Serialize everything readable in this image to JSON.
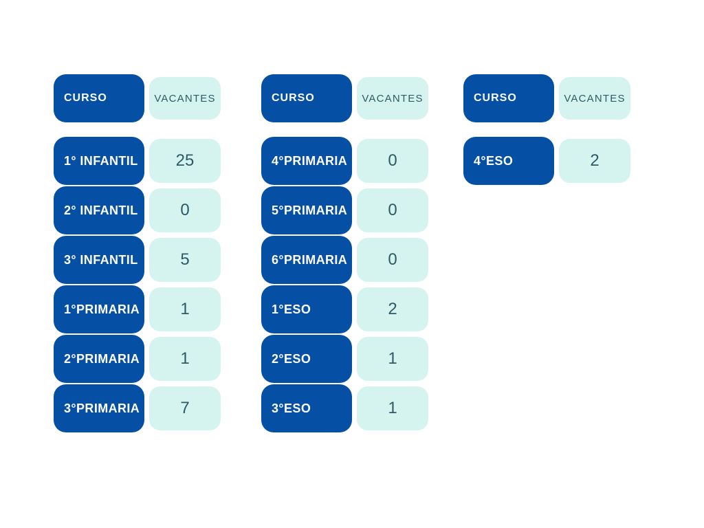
{
  "colors": {
    "primary_blue": "#0550A5",
    "light_cyan": "#D5F4F0",
    "teal_text": "#2E5A64",
    "white_text": "#FFFFFF",
    "page_bg": "#FFFFFF"
  },
  "chart_data": [
    {
      "type": "table",
      "title": "",
      "columns": [
        "CURSO",
        "VACANTES"
      ],
      "rows": [
        {
          "curso": "1° INFANTIL",
          "vacantes": 25
        },
        {
          "curso": "2° INFANTIL",
          "vacantes": 0
        },
        {
          "curso": "3° INFANTIL",
          "vacantes": 5
        },
        {
          "curso": "1°PRIMARIA",
          "vacantes": 1
        },
        {
          "curso": "2°PRIMARIA",
          "vacantes": 1
        },
        {
          "curso": "3°PRIMARIA",
          "vacantes": 7
        }
      ]
    },
    {
      "type": "table",
      "title": "",
      "columns": [
        "CURSO",
        "VACANTES"
      ],
      "rows": [
        {
          "curso": "4°PRIMARIA",
          "vacantes": 0
        },
        {
          "curso": "5°PRIMARIA",
          "vacantes": 0
        },
        {
          "curso": "6°PRIMARIA",
          "vacantes": 0
        },
        {
          "curso": "1°ESO",
          "vacantes": 2
        },
        {
          "curso": "2°ESO",
          "vacantes": 1
        },
        {
          "curso": "3°ESO",
          "vacantes": 1
        }
      ]
    },
    {
      "type": "table",
      "title": "",
      "columns": [
        "CURSO",
        "VACANTES"
      ],
      "rows": [
        {
          "curso": "4°ESO",
          "vacantes": 2
        }
      ]
    }
  ]
}
